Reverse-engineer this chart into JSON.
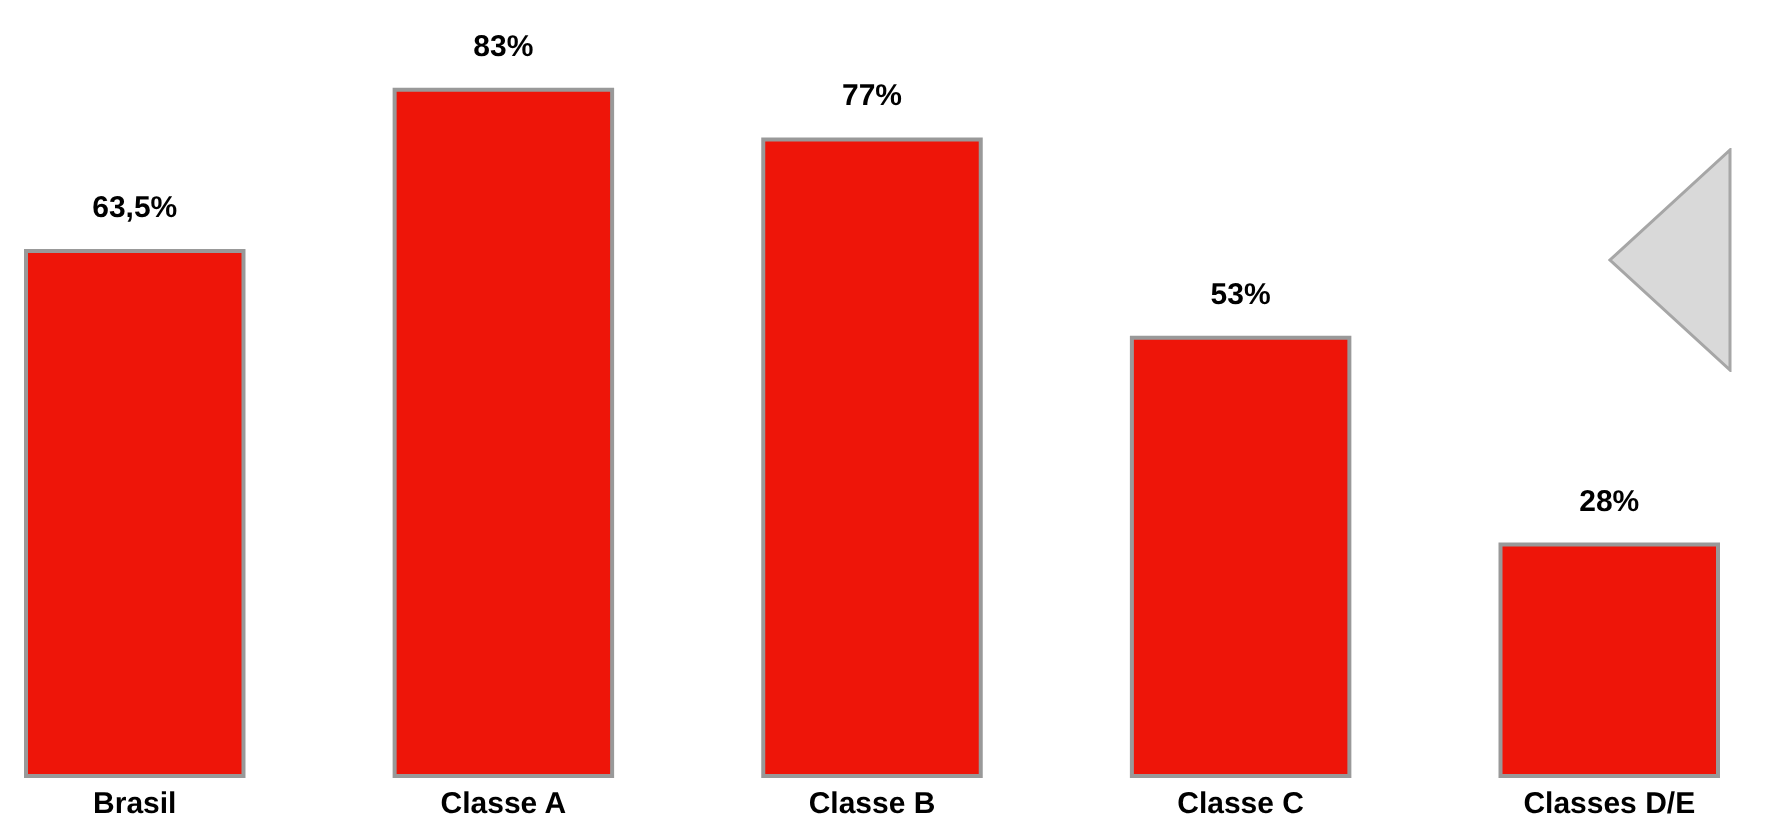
{
  "chart_data": {
    "type": "bar",
    "categories": [
      "Brasil",
      "Classe A",
      "Classe B",
      "Classe C",
      "Classes D/E"
    ],
    "values": [
      63.5,
      83,
      77,
      53,
      28
    ],
    "value_labels": [
      "63,5%",
      "83%",
      "77%",
      "53%",
      "28%"
    ],
    "colors": [
      "#ee1509",
      "#ee1509",
      "#ee1509",
      "#ee1509",
      "#ee1509"
    ]
  }
}
